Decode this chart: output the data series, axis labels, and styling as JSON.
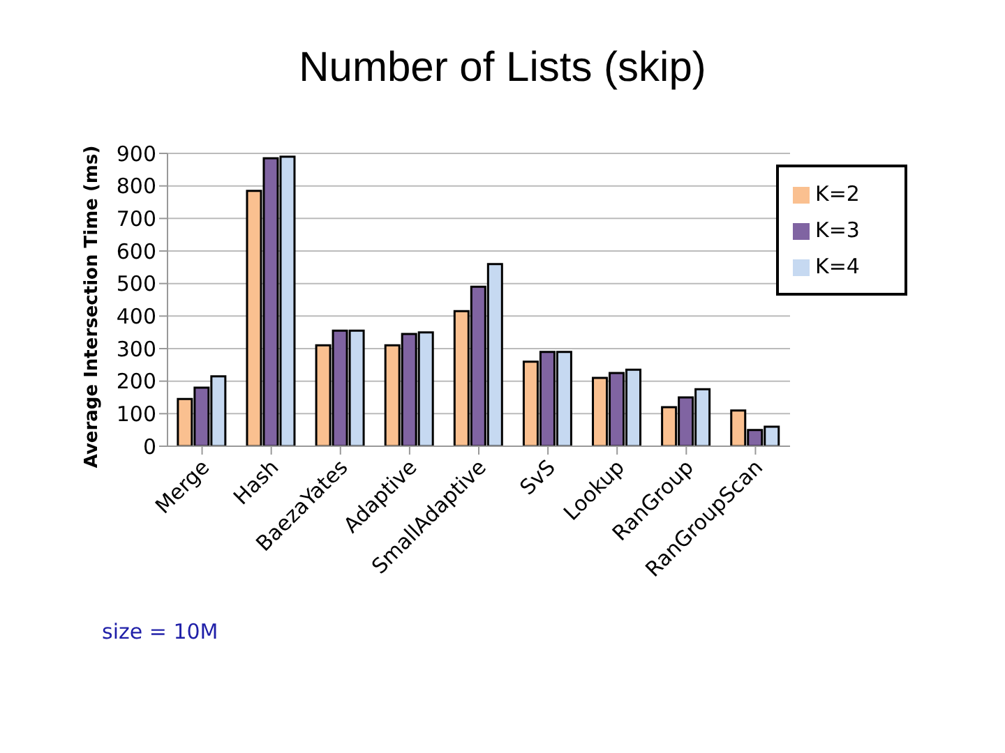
{
  "chart_data": {
    "type": "bar",
    "title": "Number of Lists (skip)",
    "ylabel": "Average Intersection Time (ms)",
    "categories": [
      "Merge",
      "Hash",
      "BaezaYates",
      "Adaptive",
      "SmallAdaptive",
      "SvS",
      "Lookup",
      "RanGroup",
      "RanGroupScan"
    ],
    "series": [
      {
        "name": "K=2",
        "color": "#fac090",
        "values": [
          145,
          785,
          310,
          310,
          415,
          260,
          210,
          120,
          110
        ]
      },
      {
        "name": "K=3",
        "color": "#8064a2",
        "values": [
          180,
          885,
          355,
          345,
          490,
          290,
          225,
          150,
          50
        ]
      },
      {
        "name": "K=4",
        "color": "#c6d9f1",
        "values": [
          215,
          890,
          355,
          350,
          560,
          290,
          235,
          175,
          60
        ]
      }
    ],
    "ylim": [
      0,
      900
    ],
    "yticks": [
      0,
      100,
      200,
      300,
      400,
      500,
      600,
      700,
      800,
      900
    ],
    "grid": "y",
    "legend": "top right",
    "annotations": [
      "size = 10M"
    ]
  }
}
